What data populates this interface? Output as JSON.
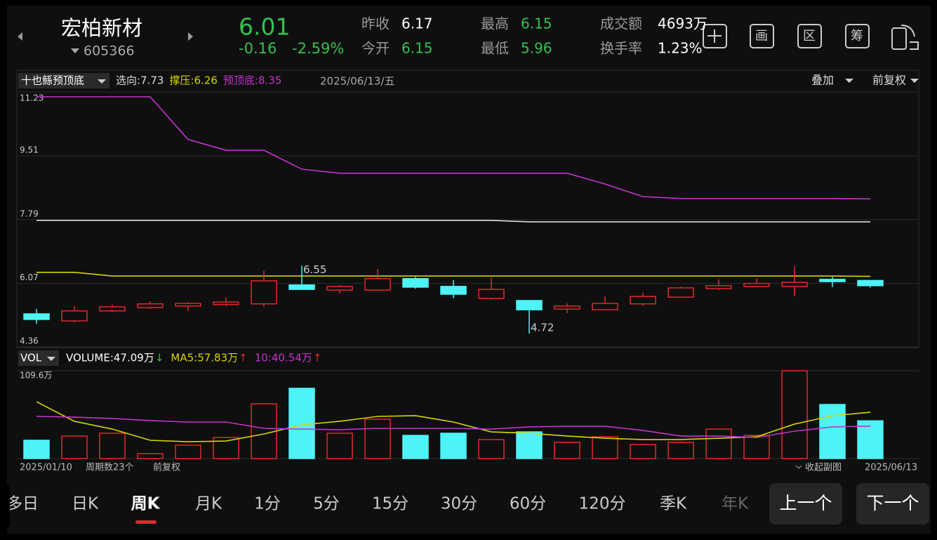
{
  "header": {
    "name": "宏柏新材",
    "code": "605366",
    "price": "6.01",
    "change": "-0.16",
    "change_pct": "-2.59%",
    "stats": [
      {
        "label": "昨收",
        "value": "6.17",
        "color": "#ffffff"
      },
      {
        "label": "今开",
        "value": "6.15",
        "color": "#35c14f"
      },
      {
        "label": "最高",
        "value": "6.15",
        "color": "#35c14f"
      },
      {
        "label": "最低",
        "value": "5.96",
        "color": "#35c14f"
      },
      {
        "label": "成交额",
        "value": "4693万",
        "color": "#ffffff"
      },
      {
        "label": "换手率",
        "value": "1.23%",
        "color": "#ffffff"
      }
    ],
    "icons": [
      "画",
      "区",
      "筹"
    ]
  },
  "kline": {
    "type": "candlestick",
    "indicator": "十也鲧预顶底",
    "date": "2025/06/13/五",
    "overlay": "叠加",
    "adjust": "前复权",
    "up_color": "#e0282e",
    "down_color": "#4ef3f6",
    "ylim": [
      4.36,
      11.23
    ],
    "yticks": [
      11.23,
      9.51,
      7.79,
      6.07,
      4.36
    ],
    "open": [
      5.25,
      5.06,
      5.33,
      5.42,
      5.46,
      5.5,
      5.52,
      6.03,
      5.89,
      5.89,
      6.2,
      5.99,
      5.67,
      5.61,
      5.38,
      5.36,
      5.52,
      5.7,
      5.93,
      5.99,
      5.99,
      6.18,
      6.15
    ],
    "high": [
      5.38,
      5.46,
      5.5,
      5.59,
      5.57,
      5.69,
      6.41,
      6.55,
      6.03,
      6.46,
      6.25,
      6.16,
      6.22,
      5.61,
      5.53,
      5.72,
      5.82,
      5.99,
      6.18,
      6.2,
      6.54,
      6.25,
      6.15
    ],
    "low": [
      4.98,
      5.02,
      5.29,
      5.38,
      5.33,
      5.46,
      5.44,
      5.91,
      5.8,
      5.89,
      5.93,
      5.67,
      5.63,
      4.72,
      5.27,
      5.36,
      5.46,
      5.7,
      5.89,
      5.97,
      5.72,
      5.97,
      5.96
    ],
    "close": [
      5.1,
      5.33,
      5.44,
      5.52,
      5.53,
      5.57,
      6.14,
      5.91,
      5.99,
      6.2,
      5.97,
      5.78,
      5.91,
      5.36,
      5.46,
      5.53,
      5.72,
      5.95,
      6.01,
      6.07,
      6.1,
      6.12,
      6.01
    ],
    "annotations": [
      6.55,
      4.72
    ],
    "series": [
      {
        "label": "选向:7.73",
        "color": "#dddddd",
        "values": [
          7.77,
          7.77,
          7.77,
          7.77,
          7.77,
          7.77,
          7.77,
          7.77,
          7.77,
          7.77,
          7.77,
          7.77,
          7.77,
          7.73,
          7.73,
          7.73,
          7.73,
          7.73,
          7.73,
          7.73,
          7.73,
          7.73,
          7.73
        ]
      },
      {
        "label": "撑压:6.26",
        "color": "#d8d400",
        "values": [
          6.37,
          6.37,
          6.27,
          6.27,
          6.27,
          6.27,
          6.27,
          6.27,
          6.27,
          6.27,
          6.27,
          6.27,
          6.27,
          6.27,
          6.27,
          6.27,
          6.27,
          6.27,
          6.27,
          6.27,
          6.27,
          6.27,
          6.26
        ]
      },
      {
        "label": "预顶底:8.35",
        "color": "#c632d0",
        "values": [
          11.1,
          11.1,
          11.1,
          11.1,
          9.95,
          9.66,
          9.66,
          9.15,
          9.04,
          9.04,
          9.04,
          9.04,
          9.04,
          9.04,
          9.04,
          8.75,
          8.41,
          8.36,
          8.36,
          8.36,
          8.36,
          8.36,
          8.35
        ]
      }
    ]
  },
  "volume": {
    "type": "bar",
    "label": "VOL",
    "ylim": [
      0,
      109.6
    ],
    "yticks": [
      {
        "value": 109.6,
        "label": "109.6万"
      }
    ],
    "values": [
      22.8,
      28.1,
      31.6,
      6.1,
      16.7,
      26.3,
      68.4,
      87.7,
      31.6,
      49.1,
      28.9,
      31.6,
      23.7,
      33.3,
      20.2,
      27.2,
      17.5,
      20.2,
      36.8,
      28.9,
      109.6,
      67.5,
      47.09
    ],
    "legend": [
      {
        "text": "VOLUME:47.09万",
        "arrow": "↓",
        "color": "#ffffff",
        "arrow_color": "#35c14f"
      },
      {
        "text": "MA5:57.83万",
        "arrow": "↑",
        "color": "#d8d400",
        "arrow_color": "#e0282e"
      },
      {
        "text": "10:40.54万",
        "arrow": "↑",
        "color": "#c632d0",
        "arrow_color": "#e0282e"
      }
    ],
    "series": [
      {
        "color": "#d8d400",
        "values": [
          71.0,
          46.5,
          36.8,
          22.8,
          21.0,
          21.9,
          30.7,
          42.1,
          46.5,
          52.6,
          53.5,
          45.6,
          33.3,
          31.6,
          28.1,
          25.4,
          23.7,
          23.7,
          25.4,
          27.2,
          43.0,
          53.5,
          57.83
        ]
      },
      {
        "color": "#c632d0",
        "values": [
          52.6,
          51.7,
          50.0,
          47.4,
          45.6,
          45.6,
          37.7,
          36.8,
          36.0,
          37.7,
          37.7,
          37.7,
          36.8,
          39.5,
          40.3,
          40.3,
          35.1,
          28.1,
          28.1,
          26.3,
          34.2,
          39.5,
          40.54
        ]
      }
    ]
  },
  "footer": {
    "start": "2025/01/10",
    "periods": "周期数23个",
    "adjust": "前复权",
    "collapse": "收起副图",
    "end": "2025/06/13"
  },
  "tabs": {
    "items": [
      "多日",
      "日K",
      "周K",
      "月K",
      "1分",
      "5分",
      "15分",
      "30分",
      "60分",
      "120分",
      "季K",
      "年K"
    ],
    "active": 2,
    "prev": "上一个",
    "next": "下一个"
  }
}
